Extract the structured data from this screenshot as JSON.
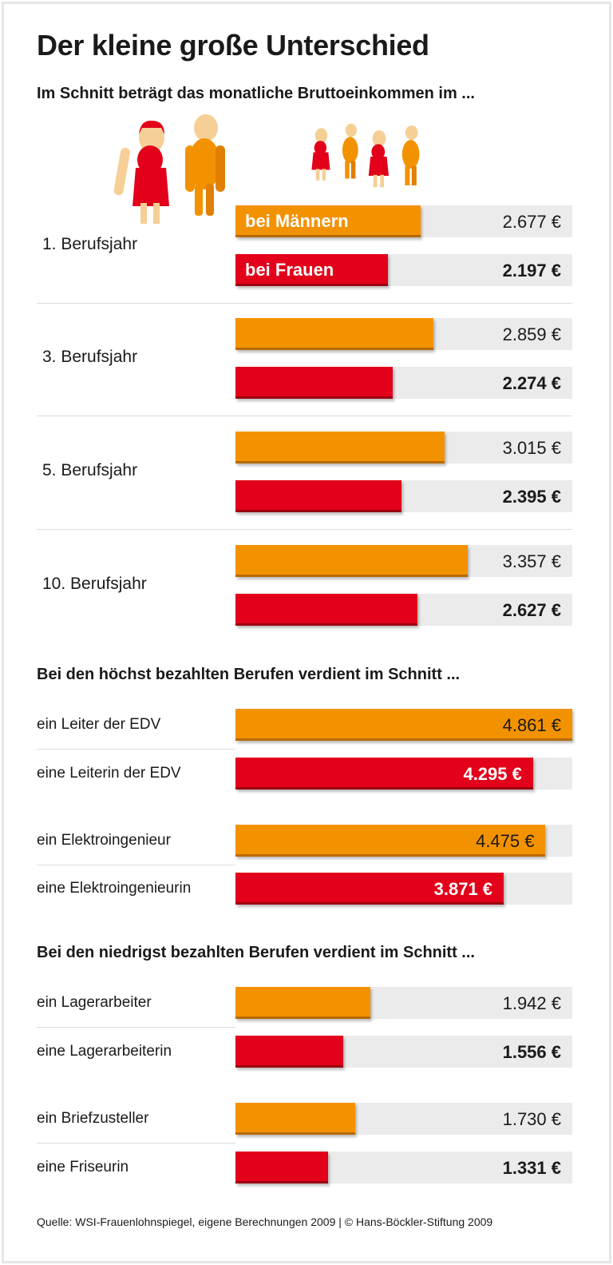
{
  "title": "Der kleine große Unterschied",
  "subtitle": "Im Schnitt beträgt das monatliche Bruttoeinkommen im ...",
  "colors": {
    "men": "#f39200",
    "women": "#e2001a",
    "track": "#ebebeb"
  },
  "icons": [
    "woman-figure-icon",
    "man-figure-icon"
  ],
  "chart_data": [
    {
      "type": "bar",
      "title": "Im Schnitt beträgt das monatliche Bruttoeinkommen im ...",
      "unit": "€",
      "legend": {
        "men": "bei Männern",
        "women": "bei Frauen"
      },
      "categories": [
        "1. Berufsjahr",
        "3. Berufsjahr",
        "5. Berufsjahr",
        "10. Berufsjahr"
      ],
      "series": [
        {
          "name": "bei Männern",
          "values": [
            2677,
            2859,
            3015,
            3357
          ],
          "labels": [
            "2.677 €",
            "2.859 €",
            "3.015 €",
            "3.357 €"
          ]
        },
        {
          "name": "bei Frauen",
          "values": [
            2197,
            2274,
            2395,
            2627
          ],
          "labels": [
            "2.197 €",
            "2.274 €",
            "2.395 €",
            "2.627 €"
          ]
        }
      ],
      "xlim": [
        0,
        4861
      ]
    },
    {
      "type": "bar",
      "title": "Bei den höchst bezahlten Berufen verdient im Schnitt ...",
      "unit": "€",
      "categories": [
        "ein Leiter der EDV",
        "eine Leiterin der EDV",
        "ein Elektroingenieur",
        "eine Elektroingenieurin"
      ],
      "values": [
        4861,
        4295,
        4475,
        3871
      ],
      "labels": [
        "4.861 €",
        "4.295 €",
        "4.475 €",
        "3.871 €"
      ],
      "xlim": [
        0,
        4861
      ]
    },
    {
      "type": "bar",
      "title": "Bei den niedrigst bezahlten Berufen verdient im Schnitt ...",
      "unit": "€",
      "categories": [
        "ein Lagerarbeiter",
        "eine Lagerarbeiterin",
        "ein Briefzusteller",
        "eine Friseurin"
      ],
      "values": [
        1942,
        1556,
        1730,
        1331
      ],
      "labels": [
        "1.942 €",
        "1.556 €",
        "1.730 €",
        "1.331 €"
      ],
      "xlim": [
        0,
        4861
      ]
    }
  ],
  "footer": "Quelle: WSI-Frauenlohnspiegel, eigene Berechnungen 2009 | © Hans-Böckler-Stiftung 2009"
}
